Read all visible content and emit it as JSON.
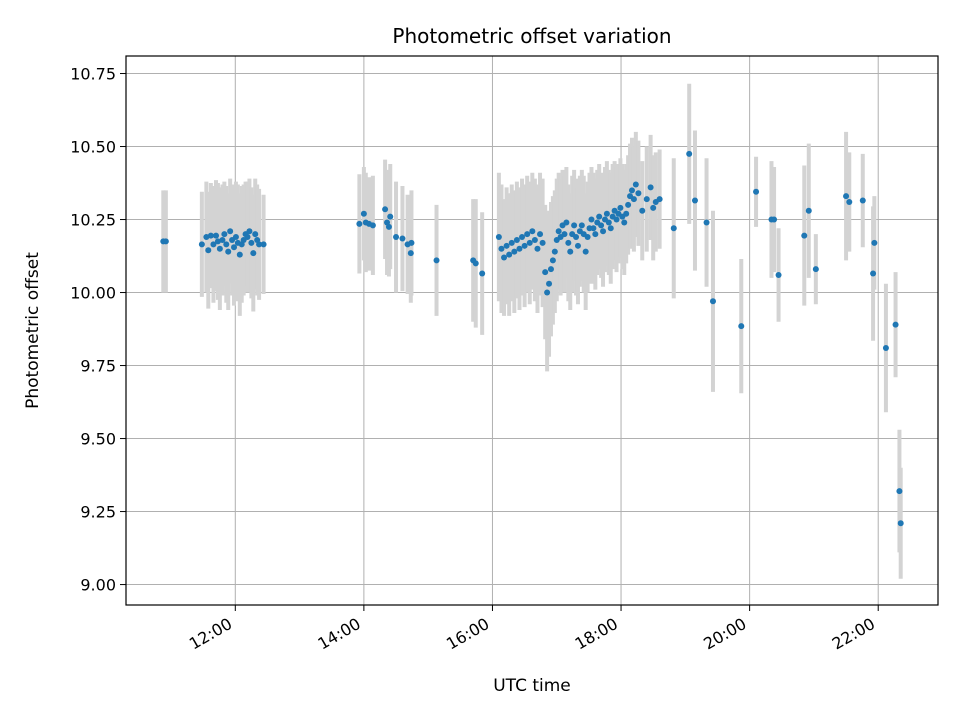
{
  "chart_data": {
    "type": "scatter",
    "title": "Photometric offset variation",
    "xlabel": "UTC time",
    "ylabel": "Photometric offset",
    "x_ticks": [
      "12:00",
      "14:00",
      "16:00",
      "18:00",
      "20:00",
      "22:00"
    ],
    "x_tick_hours": [
      12,
      14,
      16,
      18,
      20,
      22
    ],
    "xlim_hours": [
      10.3,
      22.93
    ],
    "y_ticks": [
      "9.00",
      "9.25",
      "9.50",
      "9.75",
      "10.00",
      "10.25",
      "10.50",
      "10.75"
    ],
    "y_tick_values": [
      9.0,
      9.25,
      9.5,
      9.75,
      10.0,
      10.25,
      10.5,
      10.75
    ],
    "ylim": [
      8.93,
      10.81
    ],
    "grid": true,
    "colors": {
      "marker": "#1f77b4",
      "errorbar": "#d3d3d3",
      "grid": "#b0b0b0"
    },
    "series": [
      {
        "points": [
          {
            "t": 10.88,
            "y": 10.175,
            "e": 0.175
          },
          {
            "t": 10.92,
            "y": 10.175,
            "e": 0.175
          },
          {
            "t": 11.48,
            "y": 10.165,
            "e": 0.18
          },
          {
            "t": 11.55,
            "y": 10.19,
            "e": 0.19
          },
          {
            "t": 11.58,
            "y": 10.145,
            "e": 0.2
          },
          {
            "t": 11.62,
            "y": 10.195,
            "e": 0.18
          },
          {
            "t": 11.66,
            "y": 10.165,
            "e": 0.2
          },
          {
            "t": 11.7,
            "y": 10.195,
            "e": 0.19
          },
          {
            "t": 11.73,
            "y": 10.175,
            "e": 0.2
          },
          {
            "t": 11.76,
            "y": 10.15,
            "e": 0.21
          },
          {
            "t": 11.8,
            "y": 10.18,
            "e": 0.19
          },
          {
            "t": 11.83,
            "y": 10.2,
            "e": 0.18
          },
          {
            "t": 11.86,
            "y": 10.165,
            "e": 0.2
          },
          {
            "t": 11.89,
            "y": 10.14,
            "e": 0.2
          },
          {
            "t": 11.92,
            "y": 10.21,
            "e": 0.18
          },
          {
            "t": 11.95,
            "y": 10.18,
            "e": 0.19
          },
          {
            "t": 11.98,
            "y": 10.155,
            "e": 0.2
          },
          {
            "t": 12.01,
            "y": 10.19,
            "e": 0.19
          },
          {
            "t": 12.04,
            "y": 10.17,
            "e": 0.2
          },
          {
            "t": 12.07,
            "y": 10.13,
            "e": 0.21
          },
          {
            "t": 12.1,
            "y": 10.165,
            "e": 0.2
          },
          {
            "t": 12.13,
            "y": 10.18,
            "e": 0.19
          },
          {
            "t": 12.16,
            "y": 10.2,
            "e": 0.18
          },
          {
            "t": 12.19,
            "y": 10.19,
            "e": 0.19
          },
          {
            "t": 12.22,
            "y": 10.21,
            "e": 0.18
          },
          {
            "t": 12.25,
            "y": 10.17,
            "e": 0.19
          },
          {
            "t": 12.28,
            "y": 10.135,
            "e": 0.2
          },
          {
            "t": 12.31,
            "y": 10.2,
            "e": 0.19
          },
          {
            "t": 12.34,
            "y": 10.18,
            "e": 0.19
          },
          {
            "t": 12.37,
            "y": 10.165,
            "e": 0.19
          },
          {
            "t": 12.44,
            "y": 10.165,
            "e": 0.17
          },
          {
            "t": 13.93,
            "y": 10.235,
            "e": 0.17
          },
          {
            "t": 14.0,
            "y": 10.27,
            "e": 0.16
          },
          {
            "t": 14.03,
            "y": 10.24,
            "e": 0.17
          },
          {
            "t": 14.08,
            "y": 10.235,
            "e": 0.16
          },
          {
            "t": 14.14,
            "y": 10.23,
            "e": 0.17
          },
          {
            "t": 14.33,
            "y": 10.285,
            "e": 0.17
          },
          {
            "t": 14.36,
            "y": 10.24,
            "e": 0.18
          },
          {
            "t": 14.39,
            "y": 10.225,
            "e": 0.17
          },
          {
            "t": 14.41,
            "y": 10.26,
            "e": 0.18
          },
          {
            "t": 14.5,
            "y": 10.19,
            "e": 0.19
          },
          {
            "t": 14.6,
            "y": 10.185,
            "e": 0.18
          },
          {
            "t": 14.68,
            "y": 10.165,
            "e": 0.17
          },
          {
            "t": 14.74,
            "y": 10.17,
            "e": 0.18
          },
          {
            "t": 14.73,
            "y": 10.135,
            "e": 0.17
          },
          {
            "t": 15.13,
            "y": 10.11,
            "e": 0.19
          },
          {
            "t": 15.7,
            "y": 10.11,
            "e": 0.21
          },
          {
            "t": 15.74,
            "y": 10.1,
            "e": 0.22
          },
          {
            "t": 15.84,
            "y": 10.065,
            "e": 0.21
          },
          {
            "t": 16.1,
            "y": 10.19,
            "e": 0.22
          },
          {
            "t": 16.14,
            "y": 10.15,
            "e": 0.22
          },
          {
            "t": 16.18,
            "y": 10.12,
            "e": 0.2
          },
          {
            "t": 16.22,
            "y": 10.16,
            "e": 0.2
          },
          {
            "t": 16.26,
            "y": 10.13,
            "e": 0.21
          },
          {
            "t": 16.3,
            "y": 10.17,
            "e": 0.2
          },
          {
            "t": 16.34,
            "y": 10.14,
            "e": 0.21
          },
          {
            "t": 16.38,
            "y": 10.18,
            "e": 0.2
          },
          {
            "t": 16.42,
            "y": 10.15,
            "e": 0.21
          },
          {
            "t": 16.46,
            "y": 10.19,
            "e": 0.2
          },
          {
            "t": 16.5,
            "y": 10.16,
            "e": 0.21
          },
          {
            "t": 16.54,
            "y": 10.2,
            "e": 0.2
          },
          {
            "t": 16.58,
            "y": 10.17,
            "e": 0.21
          },
          {
            "t": 16.62,
            "y": 10.21,
            "e": 0.2
          },
          {
            "t": 16.66,
            "y": 10.18,
            "e": 0.21
          },
          {
            "t": 16.7,
            "y": 10.15,
            "e": 0.22
          },
          {
            "t": 16.74,
            "y": 10.2,
            "e": 0.21
          },
          {
            "t": 16.78,
            "y": 10.17,
            "e": 0.22
          },
          {
            "t": 16.82,
            "y": 10.07,
            "e": 0.23
          },
          {
            "t": 16.85,
            "y": 10.0,
            "e": 0.27
          },
          {
            "t": 16.88,
            "y": 10.03,
            "e": 0.25
          },
          {
            "t": 16.91,
            "y": 10.08,
            "e": 0.23
          },
          {
            "t": 16.94,
            "y": 10.11,
            "e": 0.22
          },
          {
            "t": 16.97,
            "y": 10.14,
            "e": 0.21
          },
          {
            "t": 17.0,
            "y": 10.18,
            "e": 0.21
          },
          {
            "t": 17.03,
            "y": 10.21,
            "e": 0.2
          },
          {
            "t": 17.06,
            "y": 10.19,
            "e": 0.2
          },
          {
            "t": 17.09,
            "y": 10.23,
            "e": 0.19
          },
          {
            "t": 17.12,
            "y": 10.2,
            "e": 0.2
          },
          {
            "t": 17.15,
            "y": 10.24,
            "e": 0.19
          },
          {
            "t": 17.18,
            "y": 10.17,
            "e": 0.2
          },
          {
            "t": 17.21,
            "y": 10.14,
            "e": 0.2
          },
          {
            "t": 17.24,
            "y": 10.2,
            "e": 0.2
          },
          {
            "t": 17.27,
            "y": 10.23,
            "e": 0.19
          },
          {
            "t": 17.3,
            "y": 10.19,
            "e": 0.2
          },
          {
            "t": 17.33,
            "y": 10.16,
            "e": 0.2
          },
          {
            "t": 17.36,
            "y": 10.21,
            "e": 0.19
          },
          {
            "t": 17.39,
            "y": 10.23,
            "e": 0.19
          },
          {
            "t": 17.42,
            "y": 10.2,
            "e": 0.2
          },
          {
            "t": 17.45,
            "y": 10.14,
            "e": 0.2
          },
          {
            "t": 17.48,
            "y": 10.19,
            "e": 0.19
          },
          {
            "t": 17.51,
            "y": 10.22,
            "e": 0.19
          },
          {
            "t": 17.54,
            "y": 10.25,
            "e": 0.18
          },
          {
            "t": 17.57,
            "y": 10.22,
            "e": 0.19
          },
          {
            "t": 17.6,
            "y": 10.2,
            "e": 0.19
          },
          {
            "t": 17.63,
            "y": 10.24,
            "e": 0.18
          },
          {
            "t": 17.66,
            "y": 10.26,
            "e": 0.18
          },
          {
            "t": 17.69,
            "y": 10.23,
            "e": 0.18
          },
          {
            "t": 17.72,
            "y": 10.21,
            "e": 0.19
          },
          {
            "t": 17.75,
            "y": 10.25,
            "e": 0.18
          },
          {
            "t": 17.78,
            "y": 10.27,
            "e": 0.18
          },
          {
            "t": 17.81,
            "y": 10.24,
            "e": 0.18
          },
          {
            "t": 17.84,
            "y": 10.22,
            "e": 0.19
          },
          {
            "t": 17.87,
            "y": 10.26,
            "e": 0.18
          },
          {
            "t": 17.9,
            "y": 10.28,
            "e": 0.17
          },
          {
            "t": 17.93,
            "y": 10.25,
            "e": 0.18
          },
          {
            "t": 17.96,
            "y": 10.27,
            "e": 0.17
          },
          {
            "t": 17.99,
            "y": 10.29,
            "e": 0.17
          },
          {
            "t": 18.02,
            "y": 10.26,
            "e": 0.18
          },
          {
            "t": 18.05,
            "y": 10.24,
            "e": 0.18
          },
          {
            "t": 18.08,
            "y": 10.27,
            "e": 0.17
          },
          {
            "t": 18.11,
            "y": 10.3,
            "e": 0.17
          },
          {
            "t": 18.14,
            "y": 10.33,
            "e": 0.18
          },
          {
            "t": 18.17,
            "y": 10.35,
            "e": 0.18
          },
          {
            "t": 18.2,
            "y": 10.32,
            "e": 0.18
          },
          {
            "t": 18.23,
            "y": 10.37,
            "e": 0.18
          },
          {
            "t": 18.27,
            "y": 10.34,
            "e": 0.18
          },
          {
            "t": 18.33,
            "y": 10.28,
            "e": 0.17
          },
          {
            "t": 18.4,
            "y": 10.32,
            "e": 0.18
          },
          {
            "t": 18.46,
            "y": 10.36,
            "e": 0.18
          },
          {
            "t": 18.5,
            "y": 10.29,
            "e": 0.18
          },
          {
            "t": 18.54,
            "y": 10.31,
            "e": 0.17
          },
          {
            "t": 18.6,
            "y": 10.32,
            "e": 0.17
          },
          {
            "t": 18.82,
            "y": 10.22,
            "e": 0.24
          },
          {
            "t": 19.06,
            "y": 10.475,
            "e": 0.24
          },
          {
            "t": 19.15,
            "y": 10.315,
            "e": 0.24
          },
          {
            "t": 19.33,
            "y": 10.24,
            "e": 0.22
          },
          {
            "t": 19.43,
            "y": 9.97,
            "e": 0.31
          },
          {
            "t": 19.87,
            "y": 9.885,
            "e": 0.23
          },
          {
            "t": 20.1,
            "y": 10.345,
            "e": 0.12
          },
          {
            "t": 20.34,
            "y": 10.25,
            "e": 0.2
          },
          {
            "t": 20.38,
            "y": 10.25,
            "e": 0.18
          },
          {
            "t": 20.45,
            "y": 10.06,
            "e": 0.16
          },
          {
            "t": 20.85,
            "y": 10.195,
            "e": 0.24
          },
          {
            "t": 20.92,
            "y": 10.28,
            "e": 0.23
          },
          {
            "t": 21.03,
            "y": 10.08,
            "e": 0.12
          },
          {
            "t": 21.5,
            "y": 10.33,
            "e": 0.22
          },
          {
            "t": 21.55,
            "y": 10.31,
            "e": 0.17
          },
          {
            "t": 21.76,
            "y": 10.315,
            "e": 0.16
          },
          {
            "t": 21.92,
            "y": 10.065,
            "e": 0.23
          },
          {
            "t": 21.94,
            "y": 10.17,
            "e": 0.16
          },
          {
            "t": 22.12,
            "y": 9.81,
            "e": 0.22
          },
          {
            "t": 22.27,
            "y": 9.89,
            "e": 0.18
          },
          {
            "t": 22.33,
            "y": 9.32,
            "e": 0.21
          },
          {
            "t": 22.35,
            "y": 9.21,
            "e": 0.19
          }
        ]
      }
    ]
  }
}
